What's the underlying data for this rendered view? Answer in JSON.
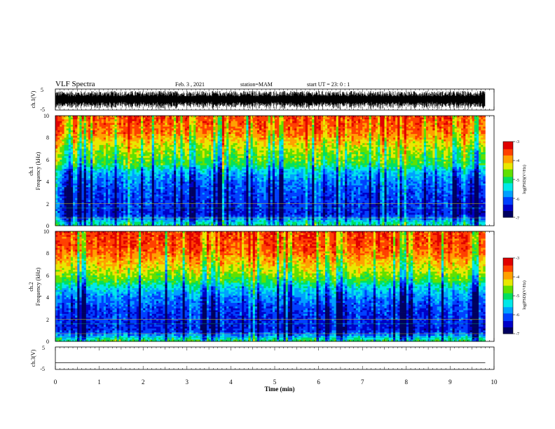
{
  "header": {
    "title": "VLF Spectra",
    "date": "Feb. 3 , 2021",
    "station": "station=MAM",
    "start": "start UT = 23: 0 : 1"
  },
  "chart_data": [
    {
      "type": "line",
      "name": "ch1-waveform",
      "ylabel": "ch.1(V)",
      "ylim": [
        -5,
        5
      ],
      "yticks": [
        "5",
        "-5"
      ],
      "xlim": [
        0,
        10
      ],
      "note_values": "dense noisy waveform filling roughly -4 to 4 V over 0-9.8 min"
    },
    {
      "type": "heatmap",
      "name": "ch1-spectrogram",
      "ylabel": [
        "ch.1",
        "Frequency (kHz)"
      ],
      "ylim": [
        0,
        10
      ],
      "yticks": [
        "0",
        "2",
        "4",
        "6",
        "8",
        "10"
      ],
      "xlim": [
        0,
        10
      ],
      "data_end_min": 9.8,
      "colorbar": {
        "label": "log(PSD)(V²/Hz)",
        "range": [
          -7,
          -3
        ],
        "ticks": [
          "-3",
          "-4",
          "-5",
          "-6",
          "-7"
        ]
      },
      "profile_by_freq_khz": [
        {
          "f": 0.0,
          "level": -5.0
        },
        {
          "f": 0.5,
          "level": -5.6
        },
        {
          "f": 1.0,
          "level": -6.3
        },
        {
          "f": 2.0,
          "level": -6.2
        },
        {
          "f": 3.0,
          "level": -6.1
        },
        {
          "f": 4.0,
          "level": -5.9
        },
        {
          "f": 5.0,
          "level": -5.5
        },
        {
          "f": 5.5,
          "level": -4.9
        },
        {
          "f": 6.5,
          "level": -4.6
        },
        {
          "f": 7.5,
          "level": -4.2
        },
        {
          "f": 8.5,
          "level": -3.7
        },
        {
          "f": 10.0,
          "level": -3.5
        }
      ]
    },
    {
      "type": "heatmap",
      "name": "ch2-spectrogram",
      "ylabel": [
        "ch.2",
        "Frequency (kHz)"
      ],
      "ylim": [
        0,
        10
      ],
      "yticks": [
        "0",
        "2",
        "4",
        "6",
        "8",
        "10"
      ],
      "xlim": [
        0,
        10
      ],
      "data_end_min": 9.8,
      "colorbar": {
        "label": "log(PSD)(V²/Hz)",
        "range": [
          -7,
          -3
        ],
        "ticks": [
          "-3",
          "-4",
          "-5",
          "-6",
          "-7"
        ]
      },
      "profile_by_freq_khz": [
        {
          "f": 0.0,
          "level": -4.8
        },
        {
          "f": 0.5,
          "level": -5.7
        },
        {
          "f": 1.0,
          "level": -6.3
        },
        {
          "f": 2.0,
          "level": -6.2
        },
        {
          "f": 3.0,
          "level": -6.1
        },
        {
          "f": 4.0,
          "level": -5.8
        },
        {
          "f": 5.0,
          "level": -5.3
        },
        {
          "f": 5.5,
          "level": -4.8
        },
        {
          "f": 6.5,
          "level": -4.3
        },
        {
          "f": 7.5,
          "level": -3.9
        },
        {
          "f": 8.5,
          "level": -3.5
        },
        {
          "f": 10.0,
          "level": -3.4
        }
      ]
    },
    {
      "type": "line",
      "name": "ch3-waveform",
      "ylabel": "ch.3(V)",
      "ylim": [
        -5,
        5
      ],
      "yticks": [
        "5",
        "-5"
      ],
      "xlim": [
        0,
        10
      ],
      "x": [
        0,
        9.8
      ],
      "y": [
        -2,
        -2
      ]
    }
  ],
  "time_axis": {
    "xlabel": "Time (min)",
    "ticks": [
      "0",
      "1",
      "2",
      "3",
      "4",
      "5",
      "6",
      "7",
      "8",
      "9",
      "10"
    ]
  },
  "colors": {
    "colormap": [
      "#000060",
      "#0000c8",
      "#0040ff",
      "#00a0ff",
      "#00e8e8",
      "#00e060",
      "#60e000",
      "#e8e800",
      "#ffa000",
      "#ff4000",
      "#e00000"
    ]
  }
}
